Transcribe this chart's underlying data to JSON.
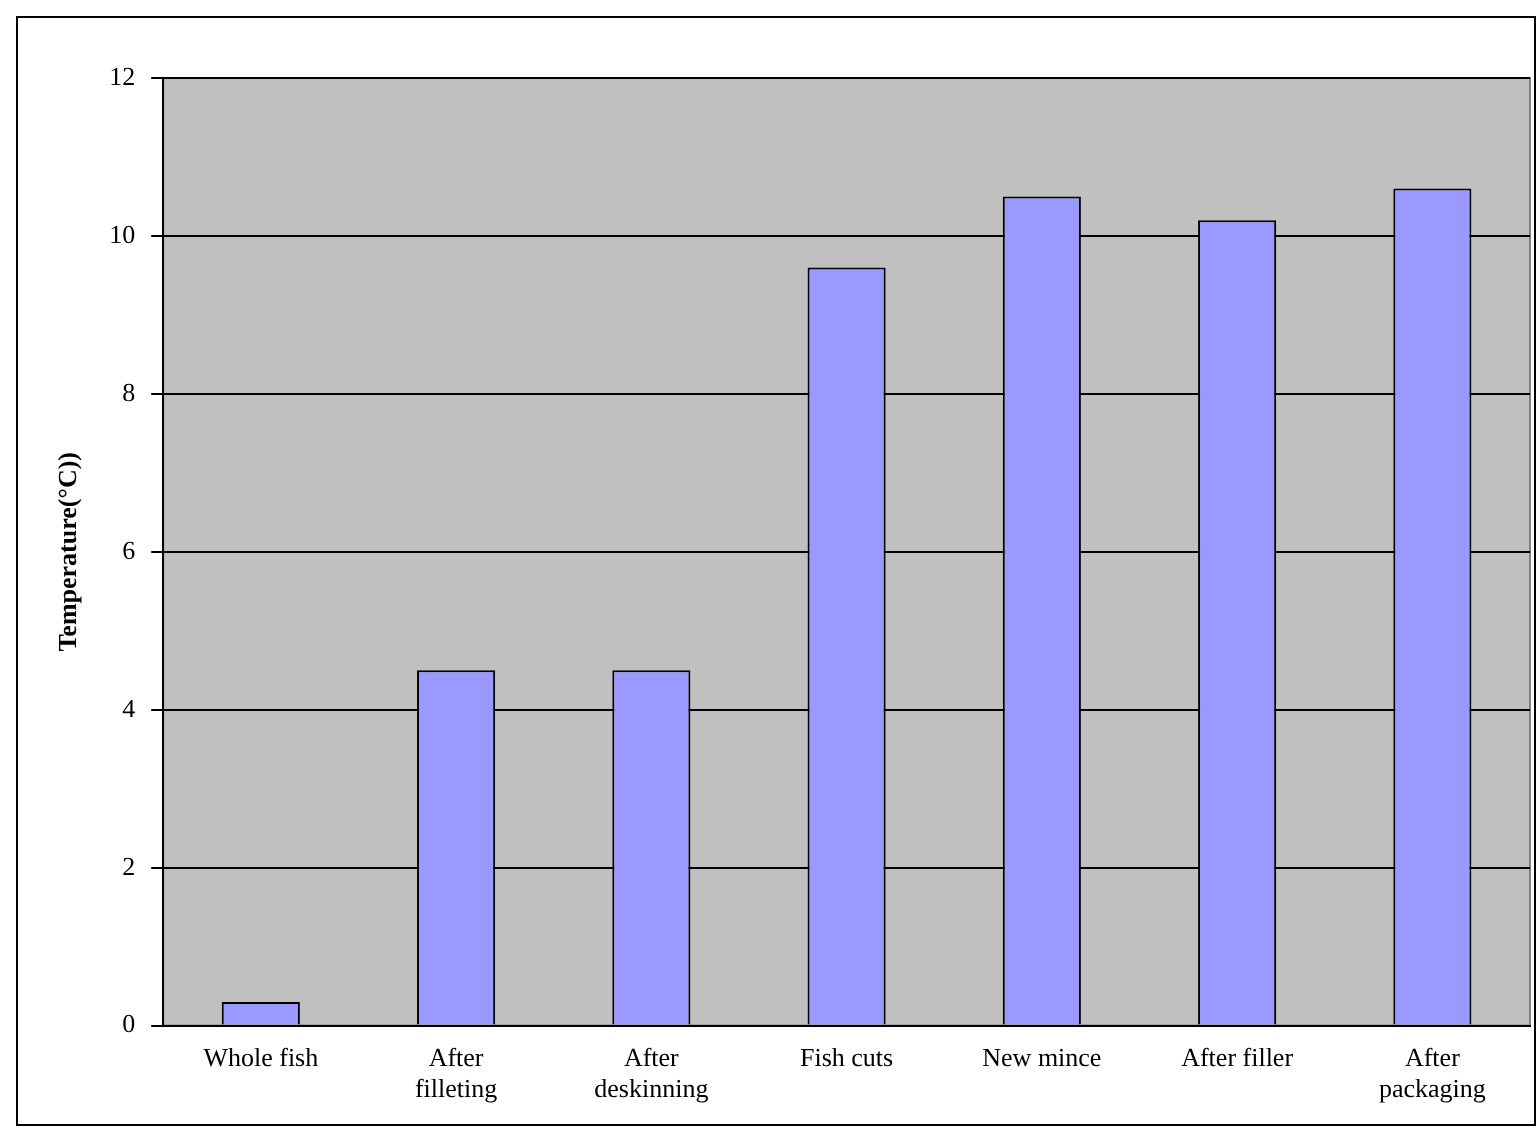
{
  "chart_data": {
    "type": "bar",
    "ylabel": "Temperature(°C))",
    "categories": [
      "Whole fish",
      "After filleting",
      "After deskinning",
      "Fish cuts",
      "New mince",
      "After filler",
      "After packaging"
    ],
    "values": [
      0.3,
      4.5,
      4.5,
      9.6,
      10.5,
      10.2,
      10.6
    ],
    "color": "#9999ff",
    "ylim": [
      0,
      12
    ],
    "yticks": [
      0,
      2,
      4,
      6,
      8,
      10,
      12
    ],
    "grid": "y",
    "legend": false
  }
}
